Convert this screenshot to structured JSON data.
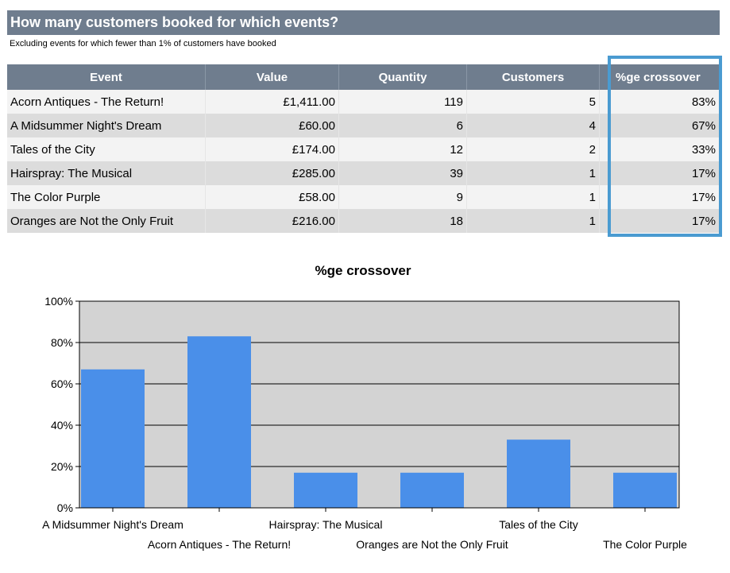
{
  "header": {
    "title": "How many customers booked for which events?",
    "subtitle": "Excluding events for which fewer than 1% of customers have booked"
  },
  "table": {
    "columns": [
      "Event",
      "Value",
      "Quantity",
      "Customers",
      "%ge crossover"
    ],
    "rows": [
      [
        "Acorn Antiques - The Return!",
        "£1,411.00",
        "119",
        "5",
        "83%"
      ],
      [
        "A Midsummer Night's Dream",
        "£60.00",
        "6",
        "4",
        "67%"
      ],
      [
        "Tales of the City",
        "£174.00",
        "12",
        "2",
        "33%"
      ],
      [
        "Hairspray: The Musical",
        "£285.00",
        "39",
        "1",
        "17%"
      ],
      [
        "The Color Purple",
        "£58.00",
        "9",
        "1",
        "17%"
      ],
      [
        "Oranges are Not the Only Fruit",
        "£216.00",
        "18",
        "1",
        "17%"
      ]
    ]
  },
  "chart_data": {
    "type": "bar",
    "title": "%ge crossover",
    "categories": [
      "A Midsummer Night's Dream",
      "Acorn Antiques - The Return!",
      "Hairspray: The Musical",
      "Oranges are Not the Only Fruit",
      "Tales of the City",
      "The Color Purple"
    ],
    "values": [
      67,
      83,
      17,
      17,
      33,
      17
    ],
    "yticks": [
      "0%",
      "20%",
      "40%",
      "60%",
      "80%",
      "100%"
    ],
    "ylim": [
      0,
      100
    ],
    "grid": true,
    "bar_color": "#4a8fe9",
    "plot_bg": "#d3d3d3"
  }
}
